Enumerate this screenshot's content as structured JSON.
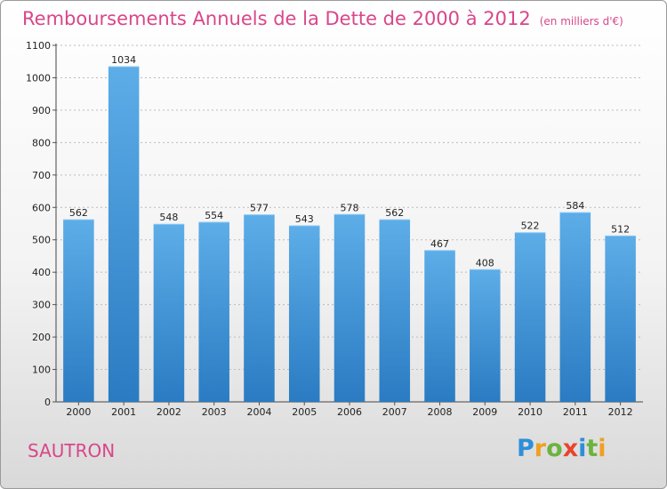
{
  "title": "Remboursements Annuels de la Dette de 2000 à 2012",
  "unit": "(en milliers d'€)",
  "city": "SAUTRON",
  "logo": {
    "letters": [
      {
        "ch": "P",
        "color": "#2e8fd8"
      },
      {
        "ch": "r",
        "color": "#f0a020"
      },
      {
        "ch": "o",
        "color": "#6cb33f"
      },
      {
        "ch": "x",
        "color": "#e8452c"
      },
      {
        "ch": "i",
        "color": "#2e8fd8"
      },
      {
        "ch": "t",
        "color": "#6cb33f"
      },
      {
        "ch": "i",
        "color": "#f0a020"
      }
    ]
  },
  "colors": {
    "title": "#d9468a",
    "bar_top": "#5dade8",
    "bar_bottom": "#2a7bc2",
    "grid": "#bcbcbc"
  },
  "chart_data": {
    "type": "bar",
    "categories": [
      "2000",
      "2001",
      "2002",
      "2003",
      "2004",
      "2005",
      "2006",
      "2007",
      "2008",
      "2009",
      "2010",
      "2011",
      "2012"
    ],
    "values": [
      562,
      1034,
      548,
      554,
      577,
      543,
      578,
      562,
      467,
      408,
      522,
      584,
      512
    ],
    "ylim": [
      0,
      1100
    ],
    "yticks": [
      0,
      100,
      200,
      300,
      400,
      500,
      600,
      700,
      800,
      900,
      1000,
      1100
    ],
    "grid": "horizontal dashed"
  }
}
